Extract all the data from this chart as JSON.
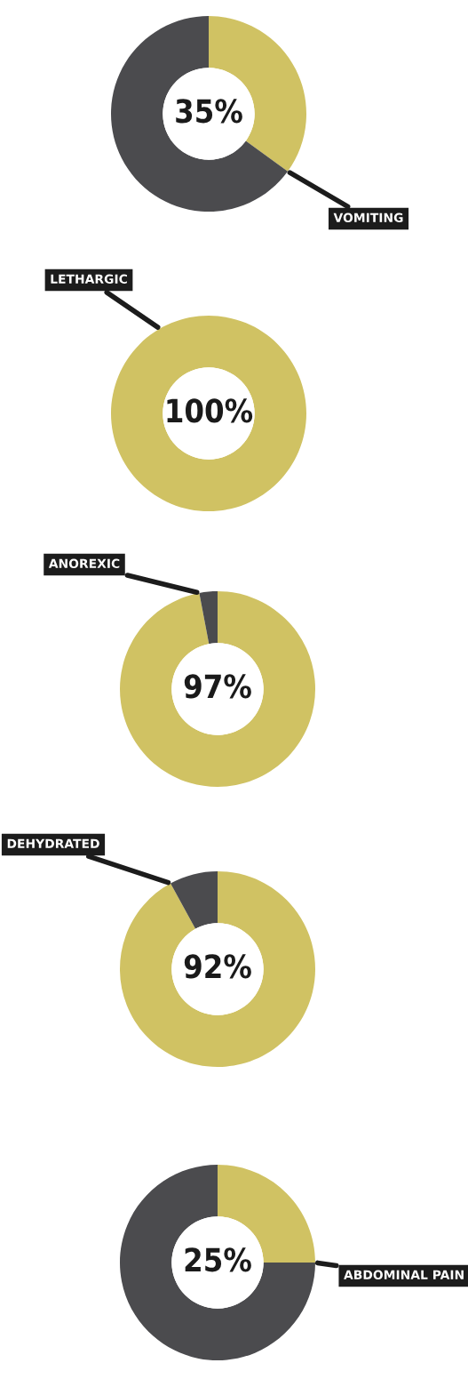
{
  "chart_data": [
    {
      "type": "donut",
      "categories": [
        "VOMITING",
        null
      ],
      "values": [
        35,
        65
      ],
      "colors": [
        "#d0c263",
        "#4b4b4e"
      ],
      "value_labels": [
        "35%",
        null
      ]
    },
    {
      "type": "donut",
      "categories": [
        "LETHARGIC"
      ],
      "values": [
        100
      ],
      "colors": [
        "#d0c263"
      ],
      "value_labels": [
        "100%"
      ]
    },
    {
      "type": "donut",
      "categories": [
        "ANOREXIC",
        null
      ],
      "values": [
        97,
        3
      ],
      "colors": [
        "#d0c263",
        "#4b4b4e"
      ],
      "value_labels": [
        "97%",
        null
      ]
    },
    {
      "type": "donut",
      "categories": [
        "DEHYDRATED",
        null
      ],
      "values": [
        92,
        8
      ],
      "colors": [
        "#d0c263",
        "#4b4b4e"
      ],
      "value_labels": [
        "92%",
        null
      ]
    },
    {
      "type": "donut",
      "categories": [
        "ABDOMINAL PAIN",
        null
      ],
      "values": [
        25,
        75
      ],
      "colors": [
        "#d0c263",
        "#4b4b4e"
      ],
      "value_labels": [
        "25%",
        null
      ]
    }
  ]
}
